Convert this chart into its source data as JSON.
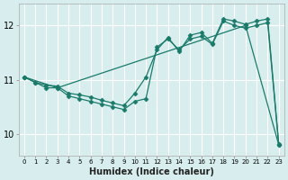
{
  "title": "",
  "xlabel": "Humidex (Indice chaleur)",
  "ylabel": "",
  "bg_color": "#d8eeee",
  "grid_color": "#ffffff",
  "line_color": "#1a7a6a",
  "xlim": [
    -0.5,
    23.5
  ],
  "ylim": [
    9.6,
    12.4
  ],
  "yticks": [
    10,
    11,
    12
  ],
  "xticks": [
    0,
    1,
    2,
    3,
    4,
    5,
    6,
    7,
    8,
    9,
    10,
    11,
    12,
    13,
    14,
    15,
    16,
    17,
    18,
    19,
    20,
    21,
    22,
    23
  ],
  "xtick_labels": [
    "0",
    "1",
    "2",
    "3",
    "4",
    "5",
    "6",
    "7",
    "8",
    "9",
    "10",
    "11",
    "12",
    "13",
    "14",
    "15",
    "16",
    "17",
    "18",
    "19",
    "20",
    "21",
    "22",
    "23"
  ],
  "line1_x": [
    0,
    1,
    2,
    3,
    4,
    5,
    6,
    7,
    8,
    9,
    10,
    11,
    12,
    13,
    14,
    15,
    16,
    17,
    18,
    19,
    20,
    21,
    22,
    23
  ],
  "line1_y": [
    11.05,
    10.95,
    10.85,
    10.85,
    10.7,
    10.65,
    10.6,
    10.55,
    10.5,
    10.45,
    10.6,
    10.65,
    11.6,
    11.75,
    11.55,
    11.75,
    11.8,
    11.65,
    12.08,
    12.0,
    11.95,
    12.0,
    12.05,
    9.8
  ],
  "line2_x": [
    0,
    1,
    2,
    3,
    4,
    5,
    6,
    7,
    8,
    9,
    10,
    11,
    12,
    13,
    14,
    15,
    16,
    17,
    18,
    19,
    20,
    21,
    22,
    23
  ],
  "line2_y": [
    11.05,
    10.95,
    10.9,
    10.88,
    10.75,
    10.72,
    10.68,
    10.62,
    10.57,
    10.52,
    10.75,
    11.05,
    11.55,
    11.78,
    11.52,
    11.82,
    11.87,
    11.67,
    12.12,
    12.08,
    12.02,
    12.08,
    12.12,
    9.82
  ],
  "line3_x": [
    0,
    3,
    20,
    23
  ],
  "line3_y": [
    11.05,
    10.85,
    12.0,
    9.8
  ],
  "marker": "D",
  "markersize": 2.5,
  "linewidth": 0.9
}
